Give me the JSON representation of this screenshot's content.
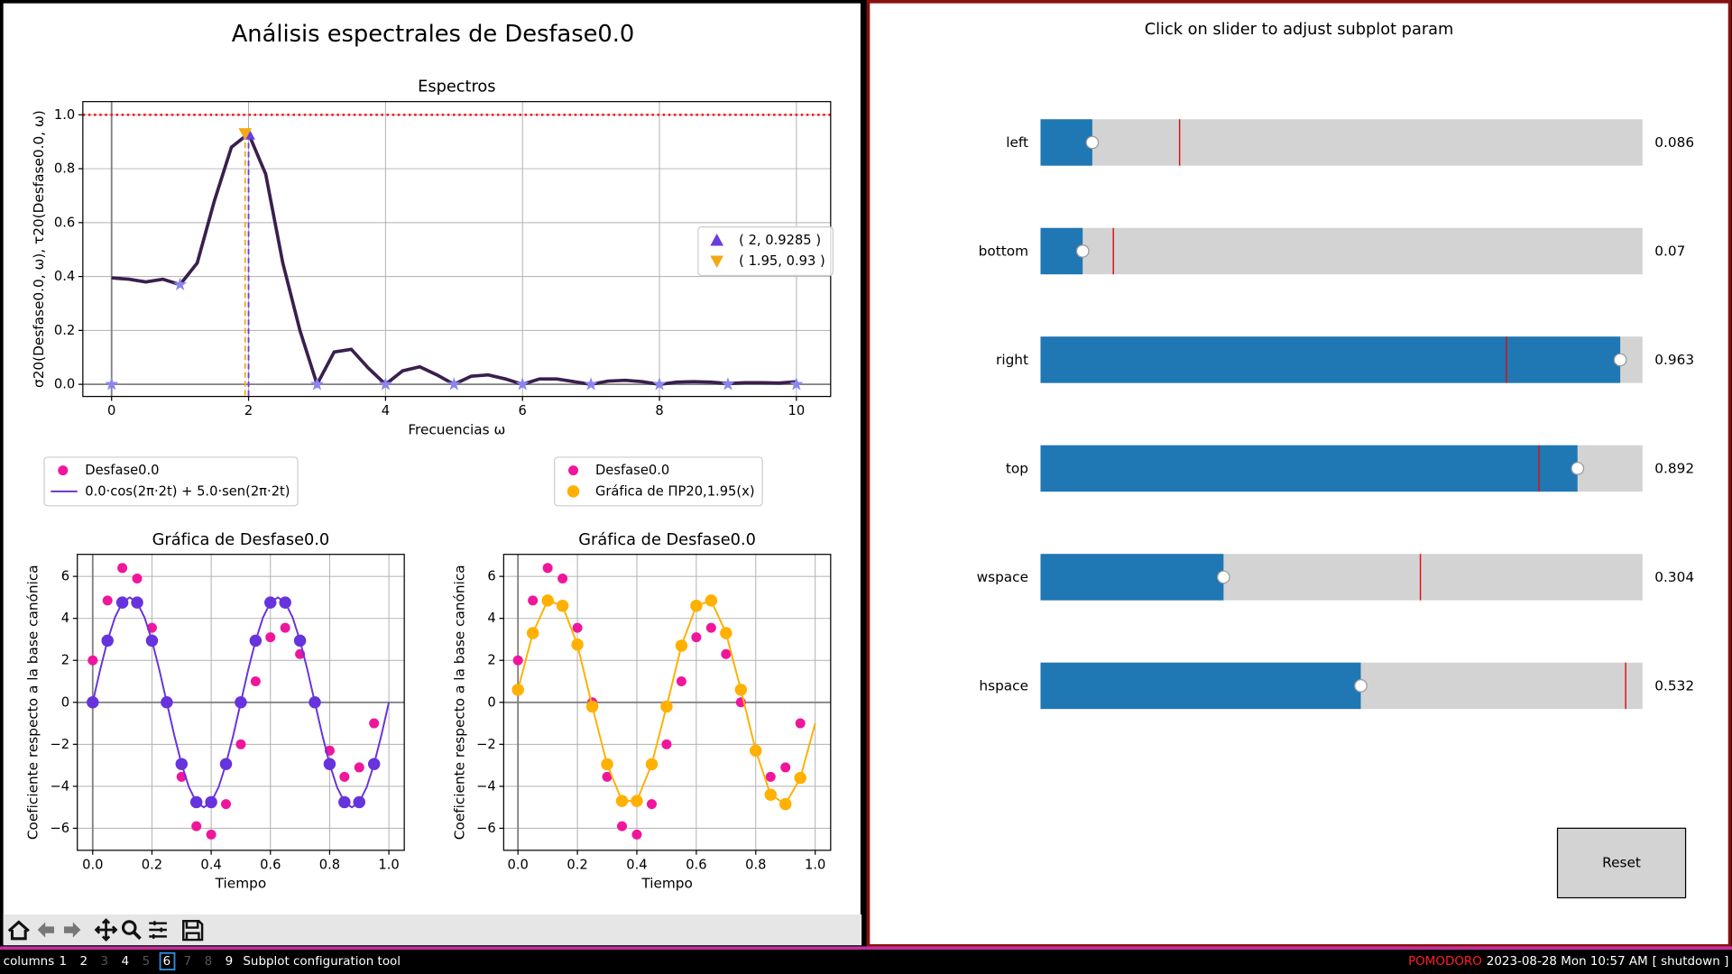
{
  "figure_title": "Análisis espectrales de Desfase0.0",
  "chart_data": [
    {
      "type": "line",
      "title": "Espectros",
      "xlabel": "Frecuencias ω",
      "ylabel": "σ20(Desfase0.0, ω), τ20(Desfase0.0, ω)",
      "xlim": [
        -0.42,
        10.5
      ],
      "ylim": [
        -0.045,
        1.049
      ],
      "xticks": [
        0,
        2,
        4,
        6,
        8,
        10
      ],
      "yticks": [
        {
          "value": 0,
          "label": "0.0"
        },
        {
          "value": 0.2,
          "label": "0.2"
        },
        {
          "value": 0.4,
          "label": "0.4"
        },
        {
          "value": 0.6,
          "label": "0.6"
        },
        {
          "value": 0.8,
          "label": "0.8"
        },
        {
          "value": 1.0,
          "label": "1.0"
        }
      ],
      "grid": true,
      "zero_lines": true,
      "reference_line": 1.0,
      "legend": "center right",
      "series": [
        {
          "style": "line",
          "color": "#3a1f4d",
          "x": [
            0,
            0.25,
            0.5,
            0.75,
            1,
            1.25,
            1.5,
            1.75,
            2,
            2.25,
            2.5,
            2.75,
            3,
            3.25,
            3.5,
            3.75,
            4,
            4.25,
            4.5,
            4.75,
            5,
            5.25,
            5.5,
            5.75,
            6,
            6.25,
            6.5,
            6.75,
            7,
            7.25,
            7.5,
            7.75,
            8,
            8.25,
            8.5,
            8.75,
            9,
            9.25,
            9.5,
            9.75,
            10
          ],
          "values": [
            0.395,
            0.39,
            0.38,
            0.39,
            0.37,
            0.45,
            0.68,
            0.88,
            0.93,
            0.78,
            0.45,
            0.2,
            0,
            0.12,
            0.13,
            0.06,
            0,
            0.05,
            0.065,
            0.035,
            0,
            0.03,
            0.035,
            0.02,
            0,
            0.02,
            0.02,
            0.01,
            0,
            0.012,
            0.015,
            0.01,
            0,
            0.008,
            0.01,
            0.008,
            0.003,
            0.006,
            0.006,
            0.005,
            0.01
          ]
        },
        {
          "style": "markers",
          "marker": "star",
          "color": "#8a86f0",
          "x": [
            0,
            1,
            3,
            4,
            5,
            6,
            7,
            8,
            9,
            10
          ],
          "values": [
            0,
            0.37,
            0,
            0,
            0,
            0,
            0,
            0,
            0,
            0
          ]
        },
        {
          "name": "( 2, 0.9285 )",
          "style": "markers",
          "marker": "triangle-up",
          "color": "#6a3de0",
          "drop_line": true,
          "x": [
            2
          ],
          "values": [
            0.9285
          ]
        },
        {
          "name": "( 1.95, 0.93 )",
          "style": "markers",
          "marker": "triangle-down",
          "color": "#f5a816",
          "drop_line": true,
          "x": [
            1.95
          ],
          "values": [
            0.93
          ]
        }
      ]
    },
    {
      "type": "line",
      "title": "Gráfica de Desfase0.0",
      "xlabel": "Tiempo",
      "ylabel": "Coeficiente respecto a la base canónica",
      "xlim": [
        -0.052,
        1.052
      ],
      "ylim": [
        -7.05,
        7.05
      ],
      "xticks": [
        {
          "value": 0,
          "label": "0.0"
        },
        {
          "value": 0.2,
          "label": "0.2"
        },
        {
          "value": 0.4,
          "label": "0.4"
        },
        {
          "value": 0.6,
          "label": "0.6"
        },
        {
          "value": 0.8,
          "label": "0.8"
        },
        {
          "value": 1.0,
          "label": "1.0"
        }
      ],
      "yticks": [
        {
          "value": -6,
          "label": "−6"
        },
        {
          "value": -4,
          "label": "−4"
        },
        {
          "value": -2,
          "label": "−2"
        },
        0,
        2,
        4,
        6
      ],
      "grid": true,
      "zero_lines": true,
      "legend": "above",
      "series": [
        {
          "name": "Desfase0.0",
          "style": "markers",
          "marker": "circle",
          "color": "#f0169c",
          "x": [
            0,
            0.05,
            0.1,
            0.15,
            0.2,
            0.25,
            0.3,
            0.35,
            0.4,
            0.45,
            0.5,
            0.55,
            0.6,
            0.65,
            0.7,
            0.75,
            0.8,
            0.85,
            0.9,
            0.95
          ],
          "values": [
            2.0,
            4.85,
            6.4,
            5.9,
            3.55,
            0,
            -3.55,
            -5.9,
            -6.3,
            -4.85,
            -2.0,
            1.0,
            3.1,
            3.55,
            2.3,
            0,
            -2.3,
            -3.55,
            -3.1,
            -1.0
          ]
        },
        {
          "name": "0.0·cos(2π·2t) + 5.0·sen(2π·2t)",
          "style": "line",
          "color": "#6633dd",
          "x": [
            0,
            0.025,
            0.05,
            0.075,
            0.1,
            0.125,
            0.15,
            0.175,
            0.2,
            0.225,
            0.25,
            0.275,
            0.3,
            0.325,
            0.35,
            0.375,
            0.4,
            0.425,
            0.45,
            0.475,
            0.5,
            0.525,
            0.55,
            0.575,
            0.6,
            0.625,
            0.65,
            0.675,
            0.7,
            0.725,
            0.75,
            0.775,
            0.8,
            0.825,
            0.85,
            0.875,
            0.9,
            0.925,
            0.95,
            0.975,
            1.0
          ],
          "values": [
            0,
            1.545,
            2.939,
            4.045,
            4.755,
            5,
            4.755,
            4.045,
            2.939,
            1.545,
            0,
            -1.545,
            -2.939,
            -4.045,
            -4.755,
            -5,
            -4.755,
            -4.045,
            -2.939,
            -1.545,
            0,
            1.545,
            2.939,
            4.045,
            4.755,
            5,
            4.755,
            4.045,
            2.939,
            1.545,
            0,
            -1.545,
            -2.939,
            -4.045,
            -4.755,
            -5,
            -4.755,
            -4.045,
            -2.939,
            -1.545,
            0
          ]
        },
        {
          "style": "markers",
          "marker": "circle-big",
          "color": "#6633dd",
          "x": [
            0,
            0.05,
            0.1,
            0.15,
            0.2,
            0.25,
            0.3,
            0.35,
            0.4,
            0.45,
            0.5,
            0.55,
            0.6,
            0.65,
            0.7,
            0.75,
            0.8,
            0.85,
            0.9,
            0.95
          ],
          "values": [
            0,
            2.939,
            4.755,
            4.755,
            2.939,
            0,
            -2.939,
            -4.755,
            -4.755,
            -2.939,
            0,
            2.939,
            4.755,
            4.755,
            2.939,
            0,
            -2.939,
            -4.755,
            -4.755,
            -2.939
          ]
        }
      ]
    },
    {
      "type": "line",
      "title": "Gráfica de Desfase0.0",
      "xlabel": "Tiempo",
      "ylabel": "Coeficiente respecto a la base canónica",
      "xlim": [
        -0.048,
        1.052
      ],
      "ylim": [
        -7.05,
        7.05
      ],
      "xticks": [
        {
          "value": 0,
          "label": "0.0"
        },
        {
          "value": 0.2,
          "label": "0.2"
        },
        {
          "value": 0.4,
          "label": "0.4"
        },
        {
          "value": 0.6,
          "label": "0.6"
        },
        {
          "value": 0.8,
          "label": "0.8"
        },
        {
          "value": 1.0,
          "label": "1.0"
        }
      ],
      "yticks": [
        {
          "value": -6,
          "label": "−6"
        },
        {
          "value": -4,
          "label": "−4"
        },
        {
          "value": -2,
          "label": "−2"
        },
        0,
        2,
        4,
        6
      ],
      "grid": true,
      "zero_lines": true,
      "legend": "above",
      "series": [
        {
          "name": "Desfase0.0",
          "style": "markers",
          "marker": "circle",
          "color": "#f0169c",
          "x": [
            0,
            0.05,
            0.1,
            0.15,
            0.2,
            0.25,
            0.3,
            0.35,
            0.4,
            0.45,
            0.5,
            0.55,
            0.6,
            0.65,
            0.7,
            0.75,
            0.8,
            0.85,
            0.9,
            0.95
          ],
          "values": [
            2.0,
            4.85,
            6.4,
            5.9,
            3.55,
            0,
            -3.55,
            -5.9,
            -6.3,
            -4.85,
            -2.0,
            1.0,
            3.1,
            3.55,
            2.3,
            0,
            -2.3,
            -3.55,
            -3.1,
            -1.0
          ]
        },
        {
          "style": "line",
          "color": "#ffb000",
          "x": [
            0,
            0.05,
            0.1,
            0.15,
            0.2,
            0.25,
            0.3,
            0.35,
            0.4,
            0.45,
            0.5,
            0.55,
            0.6,
            0.65,
            0.7,
            0.75,
            0.8,
            0.85,
            0.9,
            0.95,
            1.0
          ],
          "values": [
            0.6,
            3.3,
            4.85,
            4.6,
            2.75,
            -0.2,
            -2.95,
            -4.7,
            -4.7,
            -2.95,
            -0.2,
            2.7,
            4.6,
            4.85,
            3.3,
            0.6,
            -2.3,
            -4.4,
            -4.85,
            -3.6,
            -1.0
          ]
        },
        {
          "name": "Gráfica de ΠP20,1.95(x)",
          "style": "markers",
          "marker": "circle-big",
          "color": "#ffb000",
          "x": [
            0,
            0.05,
            0.1,
            0.15,
            0.2,
            0.25,
            0.3,
            0.35,
            0.4,
            0.45,
            0.5,
            0.55,
            0.6,
            0.65,
            0.7,
            0.75,
            0.8,
            0.85,
            0.9,
            0.95
          ],
          "values": [
            0.6,
            3.3,
            4.85,
            4.6,
            2.75,
            -0.2,
            -2.95,
            -4.7,
            -4.7,
            -2.95,
            -0.2,
            2.7,
            4.6,
            4.85,
            3.3,
            0.6,
            -2.3,
            -4.4,
            -4.85,
            -3.6
          ]
        }
      ]
    }
  ],
  "config_window": {
    "title": "Click on slider to adjust subplot param",
    "range": [
      0,
      1
    ],
    "sliders": [
      {
        "label": "left",
        "value": 0.086,
        "initial": 0.231
      },
      {
        "label": "bottom",
        "value": 0.07,
        "initial": 0.121
      },
      {
        "label": "right",
        "value": 0.963,
        "initial": 0.774
      },
      {
        "label": "top",
        "value": 0.892,
        "initial": 0.828
      },
      {
        "label": "wspace",
        "value": 0.304,
        "initial": 0.631
      },
      {
        "label": "hspace",
        "value": 0.532,
        "initial": 0.972
      }
    ],
    "reset": "Reset"
  },
  "taskbar": {
    "layout": "columns",
    "workspaces": [
      {
        "label": "1",
        "occupied": true
      },
      {
        "label": "2",
        "occupied": true
      },
      {
        "label": "3",
        "occupied": false
      },
      {
        "label": "4",
        "occupied": true
      },
      {
        "label": "5",
        "occupied": false
      },
      {
        "label": "6",
        "occupied": true,
        "active": true
      },
      {
        "label": "7",
        "occupied": false
      },
      {
        "label": "8",
        "occupied": false
      },
      {
        "label": "9",
        "occupied": true
      }
    ],
    "window_title": "Subplot configuration tool",
    "pomodoro": "POMODORO",
    "clock": "2023-08-28 Mon 10:57 AM",
    "shutdown": "[ shutdown ]"
  }
}
